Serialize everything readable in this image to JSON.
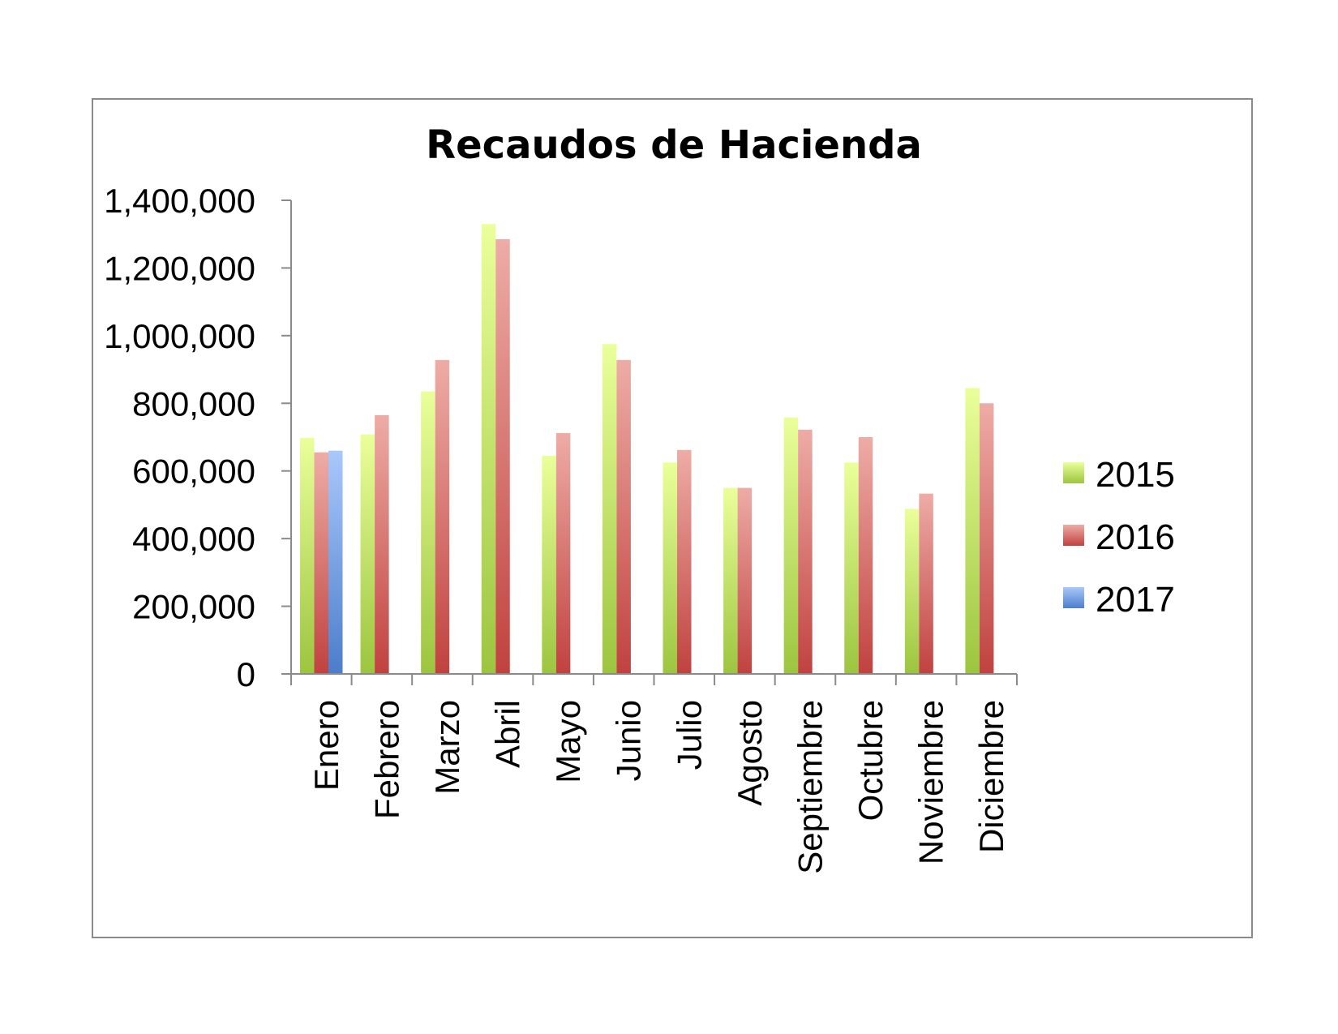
{
  "chart_data": {
    "type": "bar",
    "title": "Recaudos de Hacienda",
    "xlabel": "",
    "ylabel": "",
    "ylim": [
      0,
      1400000
    ],
    "yticks": [
      0,
      200000,
      400000,
      600000,
      800000,
      1000000,
      1200000,
      1400000
    ],
    "ytick_labels": [
      "0",
      "200,000",
      "400,000",
      "600,000",
      "800,000",
      "1,000,000",
      "1,200,000",
      "1,400,000"
    ],
    "categories": [
      "Enero",
      "Febrero",
      "Marzo",
      "Abril",
      "Mayo",
      "Junio",
      "Julio",
      "Agosto",
      "Septiembre",
      "Octubre",
      "Noviembre",
      "Diciembre"
    ],
    "series": [
      {
        "name": "2015",
        "color_light": "#eaff9a",
        "color_dark": "#9cc53f",
        "values": [
          698000,
          708000,
          835000,
          1330000,
          645000,
          975000,
          625000,
          550000,
          758000,
          625000,
          488000,
          845000
        ]
      },
      {
        "name": "2016",
        "color_light": "#eeaca6",
        "color_dark": "#c0423f",
        "values": [
          655000,
          765000,
          928000,
          1285000,
          712000,
          928000,
          662000,
          550000,
          722000,
          700000,
          533000,
          800000
        ]
      },
      {
        "name": "2017",
        "color_light": "#a9c8fb",
        "color_dark": "#4c7dcb",
        "values": [
          660000,
          null,
          null,
          null,
          null,
          null,
          null,
          null,
          null,
          null,
          null,
          null
        ]
      }
    ],
    "grid": false,
    "legend_position": "right"
  }
}
